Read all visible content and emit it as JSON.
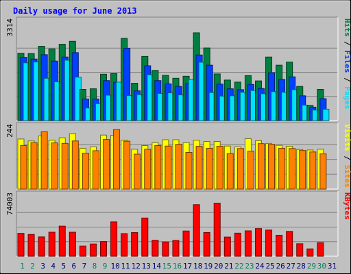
{
  "chart_data": {
    "type": "bar",
    "title": "Daily usage for June 2013",
    "categories": [
      "1",
      "2",
      "3",
      "4",
      "5",
      "6",
      "7",
      "8",
      "9",
      "10",
      "11",
      "12",
      "13",
      "14",
      "15",
      "16",
      "17",
      "18",
      "19",
      "20",
      "21",
      "22",
      "23",
      "24",
      "25",
      "26",
      "27",
      "28",
      "29",
      "30",
      "31"
    ],
    "weekend_days": [
      "1",
      "2",
      "8",
      "9",
      "15",
      "16",
      "22",
      "23",
      "29",
      "30"
    ],
    "panels": [
      {
        "name": "hits-files-pages",
        "max_label": "3314",
        "ymax": 3314,
        "series_labels": [
          "Pages",
          "Files",
          "Hits"
        ],
        "series": [
          {
            "name": "Hits",
            "color": "#008040",
            "values": [
              2310,
              2300,
              2550,
              2460,
              2620,
              2720,
              1070,
              1090,
              1590,
              1610,
              2820,
              1280,
              2200,
              1720,
              1550,
              1450,
              1520,
              3010,
              2490,
              1600,
              1390,
              1320,
              1540,
              1360,
              2180,
              1900,
              2010,
              1170,
              520,
              1070,
              0
            ]
          },
          {
            "name": "Files",
            "color": "#0040ff",
            "values": [
              2170,
              2110,
              2260,
              2040,
              2180,
              2330,
              740,
              740,
              1370,
              1310,
              2480,
              1020,
              1880,
              1370,
              1260,
              1170,
              1270,
              2250,
              1900,
              1250,
              1090,
              1060,
              1240,
              1100,
              1640,
              1410,
              1500,
              850,
              460,
              750,
              0
            ]
          },
          {
            "name": "Pages",
            "color": "#00e0ff",
            "values": [
              1980,
              2010,
              1450,
              1330,
              2070,
              1490,
              430,
              580,
              870,
              1320,
              860,
              890,
              1570,
              930,
              950,
              880,
              1410,
              2000,
              960,
              840,
              850,
              970,
              1030,
              920,
              990,
              970,
              1060,
              530,
              360,
              390,
              0
            ]
          }
        ]
      },
      {
        "name": "visits-sites",
        "max_label": "244",
        "ymax": 244,
        "series_labels": [
          "Sites",
          "Visits"
        ],
        "series": [
          {
            "name": "Visits",
            "color": "#ffff00",
            "values": [
              205,
              197,
              218,
              200,
              210,
              227,
              167,
              173,
              221,
              220,
              200,
              163,
              178,
              190,
              202,
              202,
              190,
              200,
              195,
              195,
              176,
              173,
              206,
              198,
              187,
              179,
              175,
              162,
              160,
              163,
              0
            ]
          },
          {
            "name": "Sites",
            "color": "#ff8000",
            "values": [
              178,
              190,
              235,
              189,
              187,
              197,
              147,
              157,
              203,
              244,
              196,
              143,
              163,
              178,
              176,
              183,
              150,
              175,
              167,
              175,
              145,
              166,
              155,
              186,
              183,
              167,
              166,
              158,
              152,
              144,
              0
            ]
          }
        ]
      },
      {
        "name": "kbytes",
        "max_label": "74003",
        "ymax": 74003,
        "series_labels": [
          "KBytes"
        ],
        "series": [
          {
            "name": "KBytes",
            "color": "#ff0000",
            "values": [
              29000,
              27600,
              24500,
              30500,
              38200,
              30500,
              12900,
              15500,
              18600,
              43600,
              28700,
              30000,
              48500,
              20200,
              18100,
              20000,
              32000,
              65500,
              30100,
              67400,
              24300,
              29300,
              32200,
              35100,
              33200,
              26600,
              31500,
              15800,
              9300,
              17200,
              0
            ]
          }
        ]
      }
    ],
    "series_label_colors": {
      "Hits": "#008040",
      "Files": "#0040ff",
      "Pages": "#00e0ff",
      "Visits": "#ffff00",
      "Sites": "#ff8000",
      "KBytes": "#ff0000"
    },
    "title_color": "#0000ff",
    "weekday_label_color": "#000080",
    "weekend_label_color": "#00805c"
  }
}
